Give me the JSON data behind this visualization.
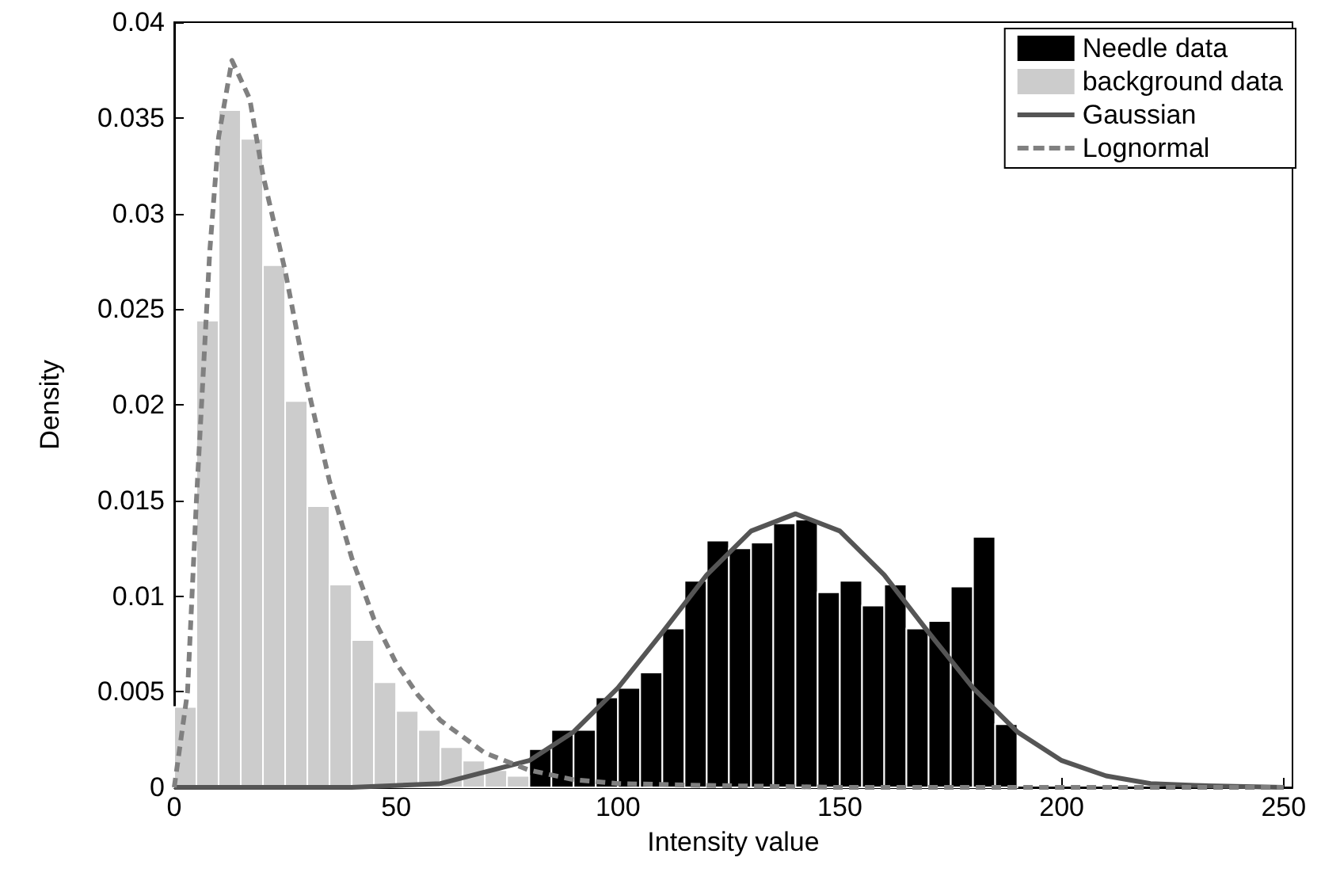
{
  "chart_data": {
    "type": "histogram",
    "xlabel": "Intensity value",
    "ylabel": "Density",
    "xlim": [
      0,
      252
    ],
    "xticks": [
      0,
      50,
      100,
      150,
      200,
      250
    ],
    "ylim": [
      0,
      0.04
    ],
    "yticks": [
      0,
      0.005,
      0.01,
      0.015,
      0.02,
      0.025,
      0.03,
      0.035,
      0.04
    ],
    "legend": "top right",
    "series": [
      {
        "name": "Needle data",
        "color": "#000000",
        "bins": [
          80,
          85,
          90,
          95,
          100,
          105,
          110,
          115,
          120,
          125,
          130,
          135,
          140,
          145,
          150,
          155,
          160,
          165,
          170,
          175,
          180,
          185,
          190
        ],
        "values": [
          0.002,
          0.003,
          0.003,
          0.0047,
          0.0052,
          0.006,
          0.0083,
          0.0108,
          0.0129,
          0.0125,
          0.0128,
          0.0138,
          0.014,
          0.0102,
          0.0108,
          0.0095,
          0.0106,
          0.0083,
          0.0087,
          0.0105,
          0.0131,
          0.0033
        ]
      },
      {
        "name": "background data",
        "color": "#cccccc",
        "bins": [
          0,
          5,
          10,
          15,
          20,
          25,
          30,
          35,
          40,
          45,
          50,
          55,
          60,
          65,
          70,
          75,
          80
        ],
        "values": [
          0.0042,
          0.0244,
          0.0354,
          0.0339,
          0.0273,
          0.0202,
          0.0147,
          0.0106,
          0.0077,
          0.0055,
          0.004,
          0.003,
          0.0021,
          0.0014,
          0.0009,
          0.0006
        ]
      },
      {
        "name": "Gaussian",
        "type": "line",
        "color": "#555555",
        "line_style": "solid",
        "x": [
          0,
          40,
          60,
          80,
          90,
          100,
          110,
          120,
          130,
          140,
          150,
          160,
          170,
          180,
          190,
          200,
          210,
          220,
          230,
          250
        ],
        "values": [
          0,
          0,
          0.0002,
          0.0014,
          0.0029,
          0.0052,
          0.0081,
          0.0111,
          0.0134,
          0.0143,
          0.0134,
          0.0111,
          0.0081,
          0.0052,
          0.0029,
          0.0014,
          0.0006,
          0.0002,
          0.0001,
          0
        ]
      },
      {
        "name": "Lognormal",
        "type": "line",
        "color": "#808080",
        "line_style": "dashed",
        "x": [
          0,
          3,
          5,
          8,
          10,
          13,
          17,
          20,
          25,
          30,
          35,
          40,
          45,
          50,
          55,
          60,
          70,
          80,
          90,
          100,
          120,
          150,
          250
        ],
        "values": [
          0,
          0.005,
          0.015,
          0.028,
          0.034,
          0.038,
          0.036,
          0.032,
          0.027,
          0.021,
          0.016,
          0.012,
          0.0088,
          0.0065,
          0.0048,
          0.0035,
          0.0018,
          0.0009,
          0.0004,
          0.0002,
          0.0001,
          0,
          0
        ]
      }
    ]
  }
}
